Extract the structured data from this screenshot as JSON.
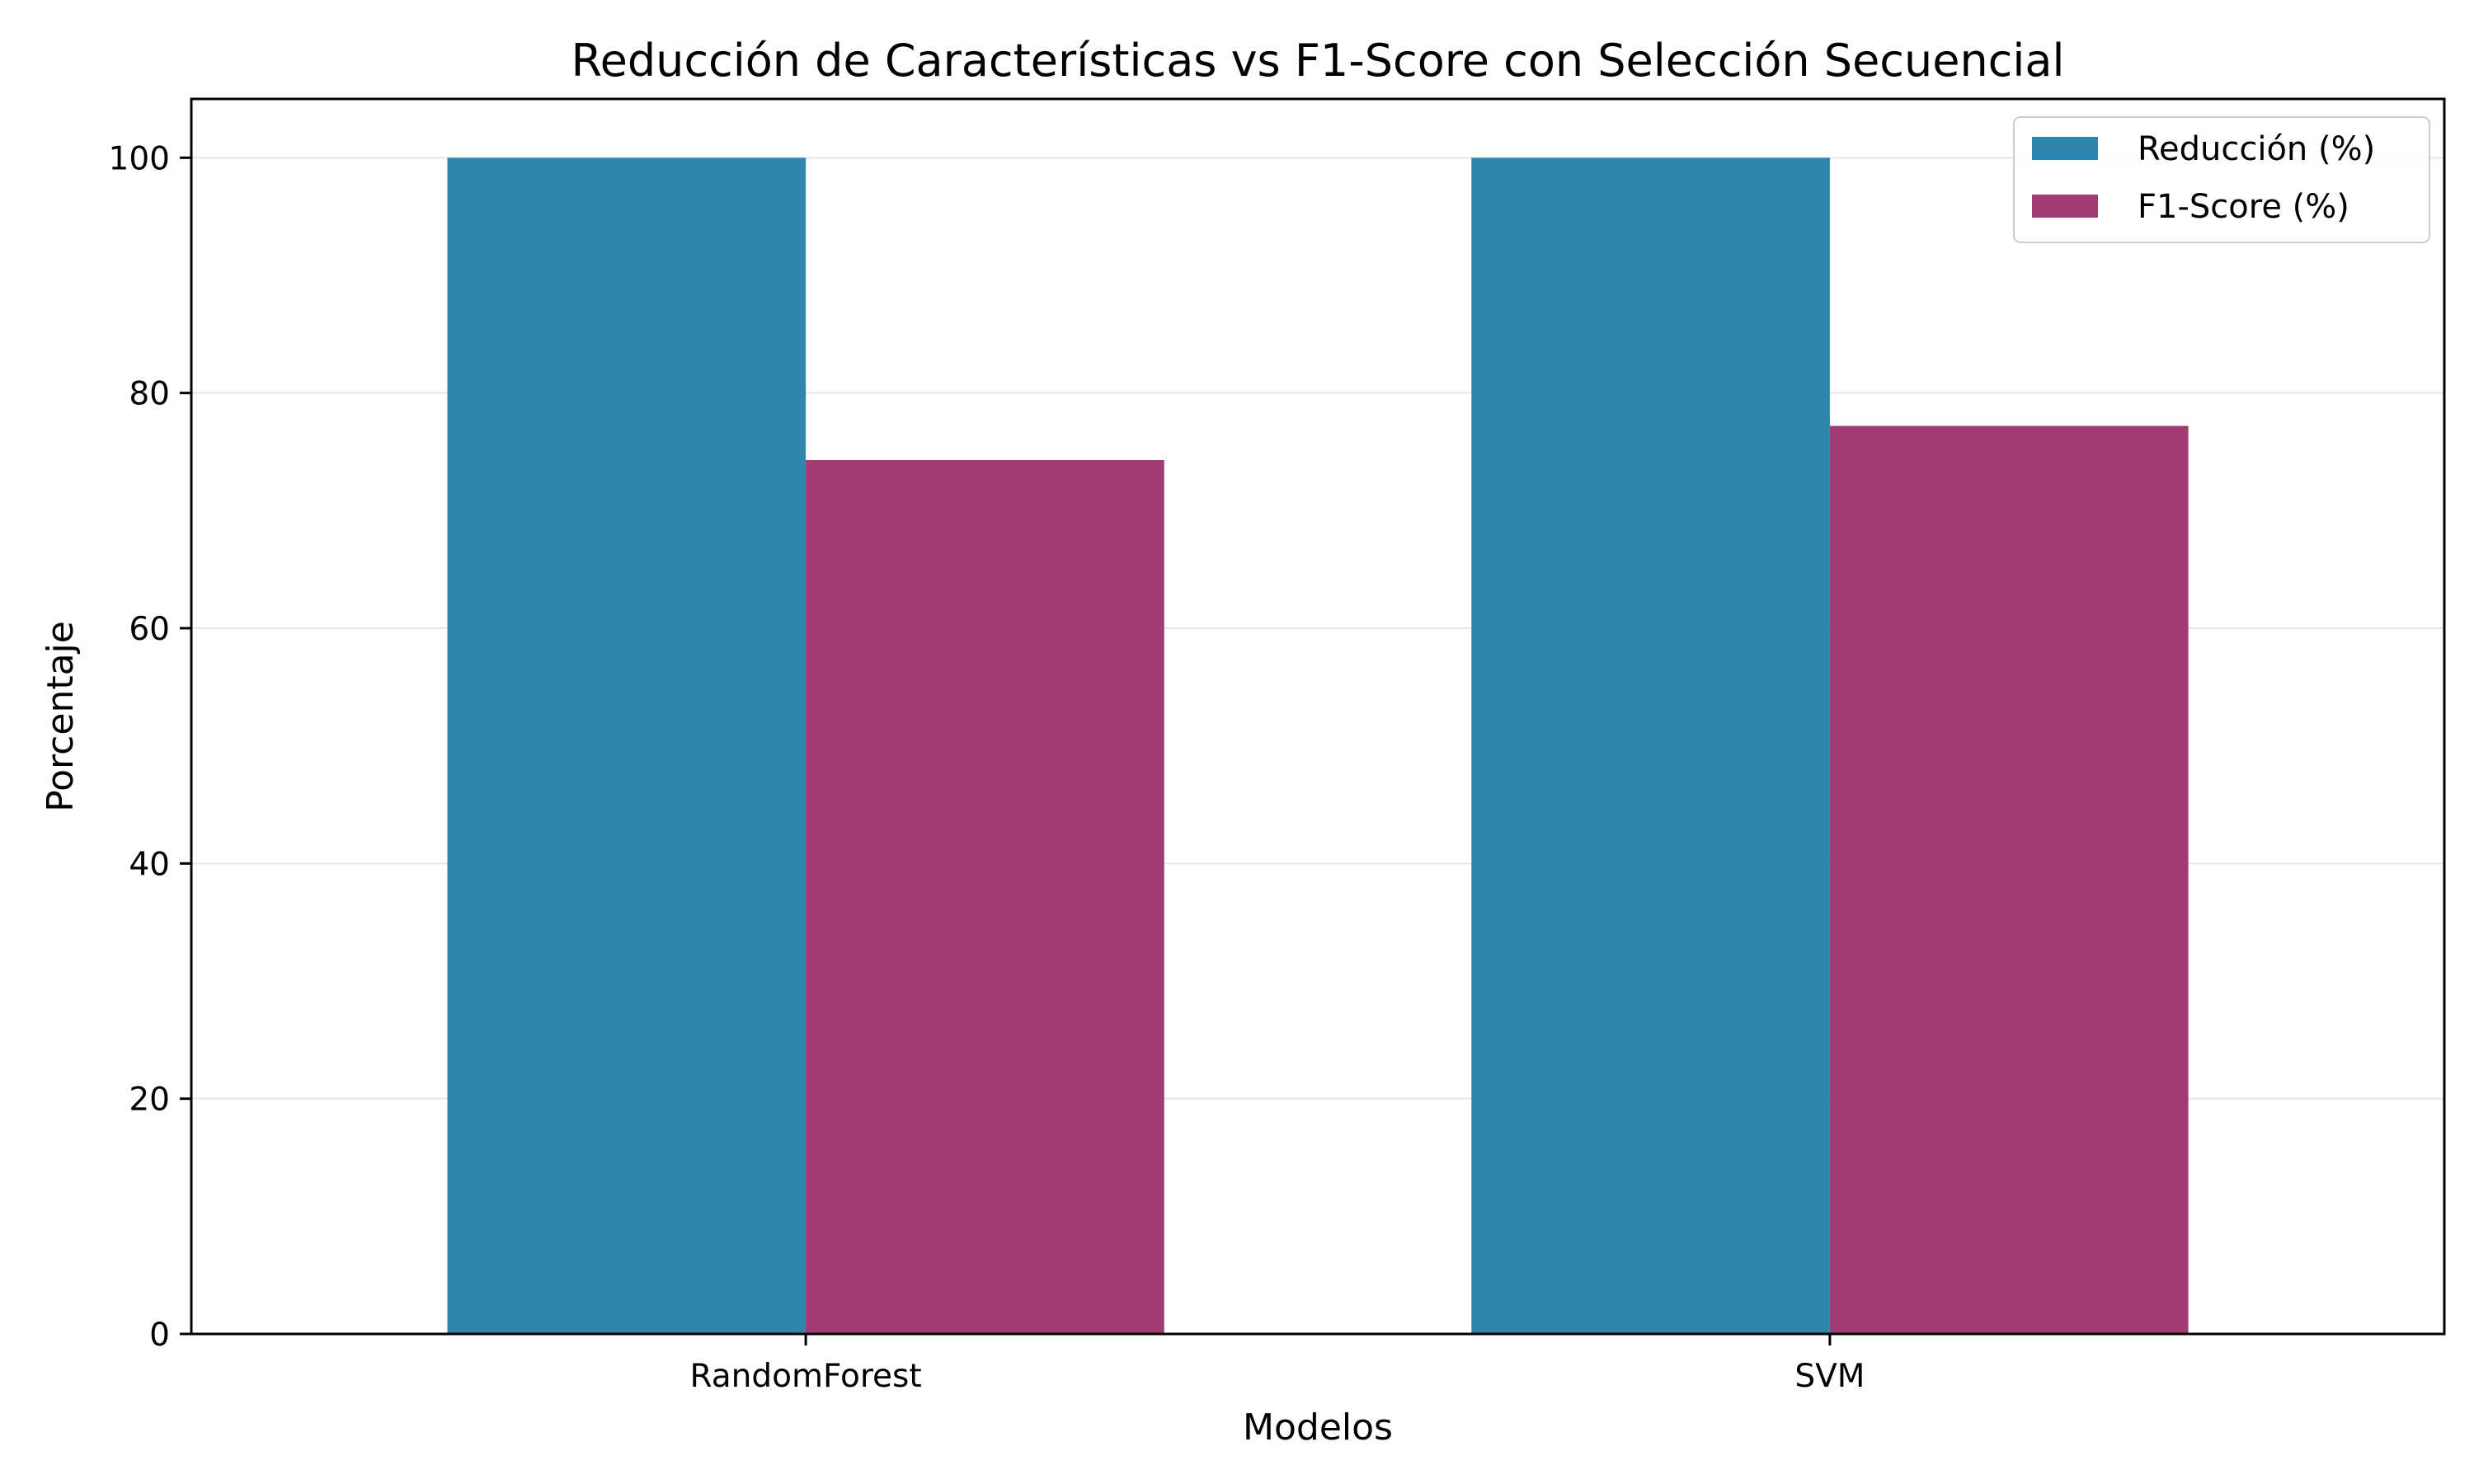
{
  "chart_data": {
    "type": "bar",
    "title": "Reducción de Características vs F1-Score con Selección Secuencial",
    "xlabel": "Modelos",
    "ylabel": "Porcentaje",
    "categories": [
      "RandomForest",
      "SVM"
    ],
    "series": [
      {
        "name": "Reducción (%)",
        "values": [
          100,
          100
        ],
        "color": "#2e86ab"
      },
      {
        "name": "F1-Score (%)",
        "values": [
          74.3,
          77.2
        ],
        "color": "#a23b72"
      }
    ],
    "ylim": [
      0,
      105
    ],
    "yticks": [
      0,
      20,
      40,
      60,
      80,
      100
    ],
    "ytick_labels": [
      "0",
      "20",
      "40",
      "60",
      "80",
      "100"
    ],
    "grid": {
      "y": true,
      "x": false,
      "color": "#e6e6e6"
    },
    "legend_position": "top-right"
  }
}
